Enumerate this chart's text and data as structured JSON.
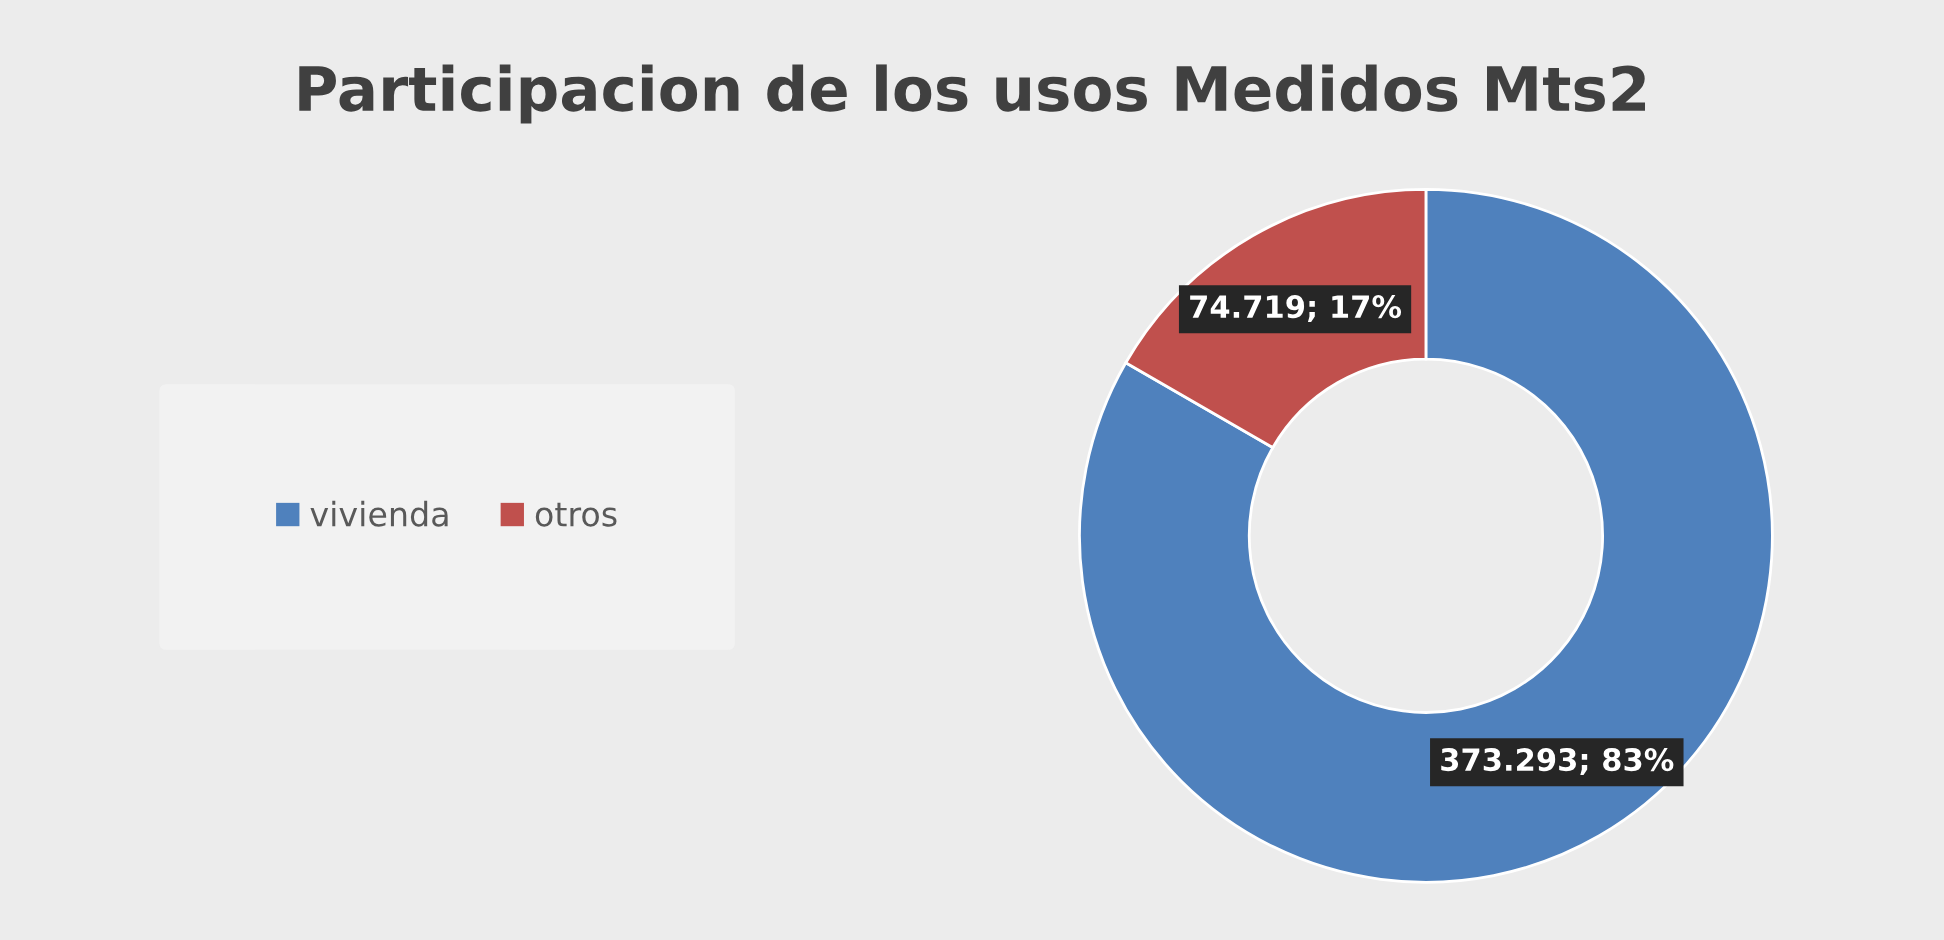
{
  "chart_data": {
    "type": "donut",
    "title": "Participacion de los usos Medidos Mts2",
    "categories": [
      "vivienda",
      "otros"
    ],
    "values": [
      373293,
      74719
    ],
    "value_labels": [
      "373.293; 83%",
      "74.719; 17%"
    ],
    "colors": [
      "#4f81bd",
      "#c0504d"
    ],
    "legend": "left"
  }
}
